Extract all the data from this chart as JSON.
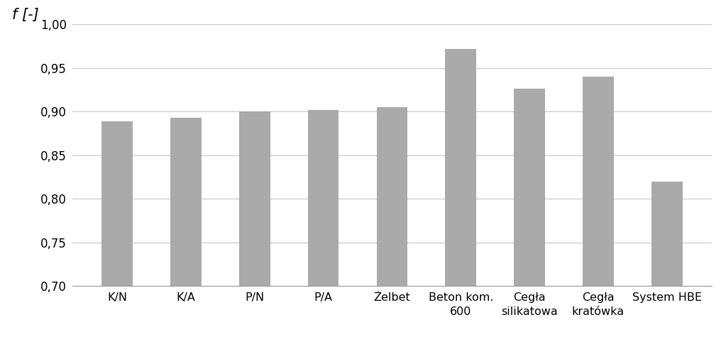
{
  "categories": [
    "K/N",
    "K/A",
    "P/N",
    "P/A",
    "Żelbet",
    "Beton kom.\n600",
    "Cegła\nsilikatowa",
    "Cegła\nkratówka",
    "System HBE"
  ],
  "values": [
    0.889,
    0.893,
    0.9,
    0.902,
    0.905,
    0.972,
    0.926,
    0.94,
    0.82
  ],
  "bar_color": "#aaaaaa",
  "ylim_min": 0.7,
  "ylim_max": 1.0,
  "yticks": [
    0.7,
    0.75,
    0.8,
    0.85,
    0.9,
    0.95,
    1.0
  ],
  "ytick_labels": [
    "0,70",
    "0,75",
    "0,80",
    "0,85",
    "0,90",
    "0,95",
    "1,00"
  ],
  "grid_color": "#c8c8c8",
  "background_color": "#ffffff",
  "bar_width": 0.45,
  "ylabel": "f [-]",
  "ylabel_fontsize": 15,
  "tick_fontsize": 12,
  "xtick_fontsize": 11.5,
  "figsize": [
    10.23,
    4.92
  ],
  "dpi": 100
}
